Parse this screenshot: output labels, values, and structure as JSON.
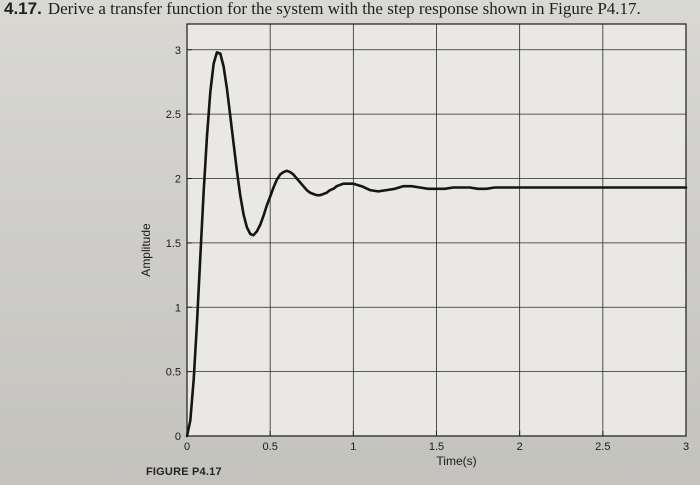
{
  "page": {
    "problem_number": "4.17.",
    "problem_text": "Derive a transfer function for the system with the step response shown in Figure P4.17.",
    "figure_caption": "FIGURE P4.17"
  },
  "chart_data": {
    "type": "line",
    "title": "",
    "xlabel": "Time(s)",
    "ylabel": "Amplitude",
    "xlim": [
      0,
      3
    ],
    "ylim": [
      0,
      3.2
    ],
    "xticks": [
      0,
      0.5,
      1,
      1.5,
      2,
      2.5,
      3
    ],
    "xtick_labels": [
      "0",
      "0.5",
      "1",
      "1.5",
      "2",
      "2.5",
      "3"
    ],
    "yticks": [
      0,
      0.5,
      1,
      1.5,
      2,
      2.5,
      3
    ],
    "ytick_labels": [
      "0",
      "0.5",
      "1",
      "1.5",
      "2",
      "2.5",
      "3"
    ],
    "grid": true,
    "legend": "none",
    "colors": {
      "line": "#151515",
      "grid": "#2a2a2a",
      "plot_background": "#e9e8e4"
    },
    "series": [
      {
        "x": [
          0,
          0.02,
          0.04,
          0.06,
          0.08,
          0.1,
          0.12,
          0.14,
          0.16,
          0.18,
          0.2,
          0.22,
          0.24,
          0.26,
          0.28,
          0.3,
          0.32,
          0.34,
          0.36,
          0.38,
          0.4,
          0.42,
          0.44,
          0.46,
          0.48,
          0.5,
          0.52,
          0.54,
          0.56,
          0.58,
          0.6,
          0.62,
          0.64,
          0.66,
          0.68,
          0.7,
          0.72,
          0.74,
          0.76,
          0.78,
          0.8,
          0.82,
          0.84,
          0.86,
          0.88,
          0.9,
          0.92,
          0.94,
          0.96,
          0.98,
          1.0,
          1.05,
          1.1,
          1.15,
          1.2,
          1.25,
          1.3,
          1.35,
          1.4,
          1.45,
          1.5,
          1.55,
          1.6,
          1.65,
          1.7,
          1.75,
          1.8,
          1.85,
          1.9,
          1.95,
          2.0,
          2.1,
          2.2,
          2.3,
          2.4,
          2.5,
          2.6,
          2.7,
          2.8,
          2.9,
          3.0
        ],
        "y": [
          0,
          0.12,
          0.44,
          0.88,
          1.39,
          1.89,
          2.33,
          2.67,
          2.89,
          2.98,
          2.97,
          2.87,
          2.7,
          2.49,
          2.27,
          2.06,
          1.87,
          1.72,
          1.62,
          1.57,
          1.56,
          1.59,
          1.64,
          1.71,
          1.79,
          1.86,
          1.93,
          1.99,
          2.03,
          2.05,
          2.06,
          2.05,
          2.03,
          2.0,
          1.97,
          1.94,
          1.91,
          1.89,
          1.88,
          1.87,
          1.87,
          1.88,
          1.89,
          1.91,
          1.92,
          1.94,
          1.95,
          1.96,
          1.96,
          1.96,
          1.96,
          1.94,
          1.91,
          1.9,
          1.91,
          1.92,
          1.94,
          1.94,
          1.93,
          1.92,
          1.92,
          1.92,
          1.93,
          1.93,
          1.93,
          1.92,
          1.92,
          1.93,
          1.93,
          1.93,
          1.93,
          1.93,
          1.93,
          1.93,
          1.93,
          1.93,
          1.93,
          1.93,
          1.93,
          1.93,
          1.93
        ]
      }
    ]
  }
}
